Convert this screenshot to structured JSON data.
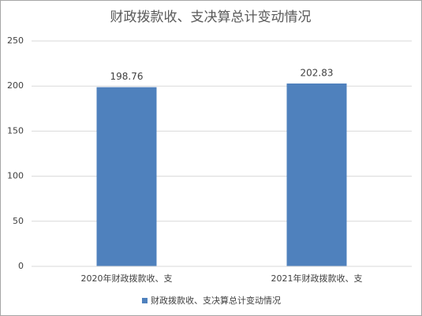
{
  "chart_data": {
    "type": "bar",
    "title": "财政拨款收、支决算总计变动情况",
    "categories": [
      "2020年财政拨款收、支",
      "2021年财政拨款收、支"
    ],
    "series": [
      {
        "name": "财政拨款收、支决算总计变动情况",
        "color": "#4f81bd",
        "values": [
          198.76,
          202.83
        ]
      }
    ],
    "ylim": [
      0,
      250
    ],
    "yticks": [
      0,
      50,
      100,
      150,
      200,
      250
    ],
    "grid": true,
    "legend": "bottom"
  }
}
